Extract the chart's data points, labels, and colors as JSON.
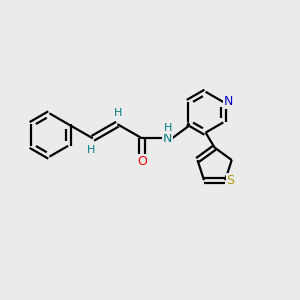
{
  "background_color": "#ebebeb",
  "bond_color": "#000000",
  "atom_colors": {
    "O": "#ff0000",
    "N_amide": "#008080",
    "N_pyridine": "#0000cd",
    "S": "#b8960c",
    "H": "#008080",
    "C": "#000000"
  },
  "figsize": [
    3.0,
    3.0
  ],
  "dpi": 100
}
